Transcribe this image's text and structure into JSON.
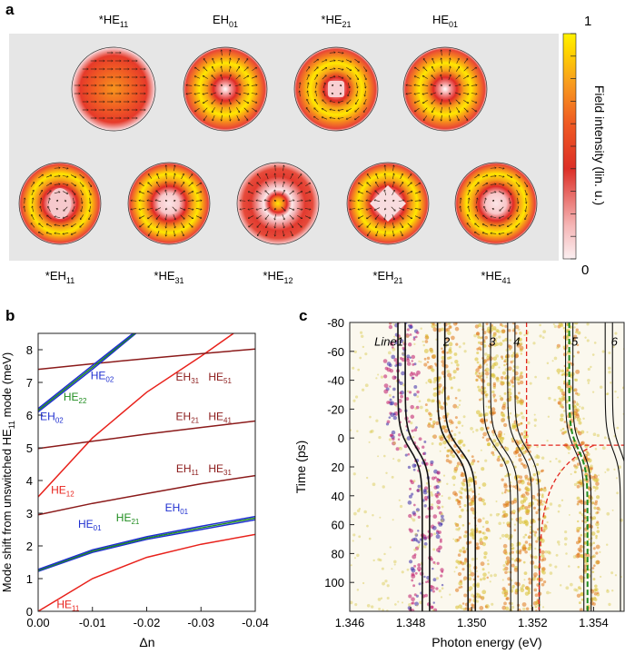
{
  "figure": {
    "panel_a": {
      "letter": "a",
      "colorbar": {
        "label": "Field intensity (lin. u.)",
        "max_label": "1",
        "min_label": "0",
        "colors": [
          "#fbeff1",
          "#f5b5b5",
          "#dc2f27",
          "#ef5a23",
          "#f89c1f",
          "#ffd400",
          "#fff200"
        ]
      },
      "modes_top": [
        {
          "prefix": "*",
          "base": "HE",
          "sub": "11",
          "pattern": "fundamental"
        },
        {
          "prefix": "",
          "base": "EH",
          "sub": "01",
          "pattern": "donut-center"
        },
        {
          "prefix": "*",
          "base": "HE",
          "sub": "21",
          "pattern": "donut-square"
        },
        {
          "prefix": "",
          "base": "HE",
          "sub": "01",
          "pattern": "donut-center"
        }
      ],
      "modes_bottom": [
        {
          "prefix": "*",
          "base": "EH",
          "sub": "11",
          "pattern": "ring-oval"
        },
        {
          "prefix": "*",
          "base": "HE",
          "sub": "31",
          "pattern": "ring"
        },
        {
          "prefix": "*",
          "base": "HE",
          "sub": "12",
          "pattern": "double-ring"
        },
        {
          "prefix": "*",
          "base": "EH",
          "sub": "21",
          "pattern": "ring-diamond"
        },
        {
          "prefix": "*",
          "base": "HE",
          "sub": "41",
          "pattern": "ring"
        }
      ]
    },
    "panel_b": {
      "letter": "b",
      "ylabel_parts": [
        "Mode shift from unswitched HE",
        "11",
        " mode (meV)"
      ],
      "xlabel": "Δn",
      "colors": {
        "red": "#e8211b",
        "darkred": "#8b1a1a",
        "blue": "#1f2fd0",
        "green": "#1e8c1e"
      },
      "annotations": [
        {
          "base": "EH",
          "sub": "31",
          "color": "darkred",
          "x": -0.0275,
          "y": 7.05
        },
        {
          "base": "HE",
          "sub": "51",
          "color": "darkred",
          "x": -0.0335,
          "y": 7.05
        },
        {
          "base": "EH",
          "sub": "21",
          "color": "darkred",
          "x": -0.0275,
          "y": 5.85
        },
        {
          "base": "HE",
          "sub": "41",
          "color": "darkred",
          "x": -0.0335,
          "y": 5.85
        },
        {
          "base": "EH",
          "sub": "11",
          "color": "darkred",
          "x": -0.0275,
          "y": 4.25
        },
        {
          "base": "HE",
          "sub": "31",
          "color": "darkred",
          "x": -0.0335,
          "y": 4.25
        },
        {
          "base": "HE",
          "sub": "12",
          "color": "red",
          "x": -0.0045,
          "y": 3.6
        },
        {
          "base": "HE",
          "sub": "02",
          "color": "blue",
          "x": -0.0118,
          "y": 7.1
        },
        {
          "base": "HE",
          "sub": "22",
          "color": "green",
          "x": -0.0068,
          "y": 6.45
        },
        {
          "base": "EH",
          "sub": "02",
          "color": "blue",
          "x": -0.0025,
          "y": 5.85
        },
        {
          "base": "HE",
          "sub": "01",
          "color": "blue",
          "x": -0.0095,
          "y": 2.55
        },
        {
          "base": "HE",
          "sub": "21",
          "color": "green",
          "x": -0.0165,
          "y": 2.75
        },
        {
          "base": "EH",
          "sub": "01",
          "color": "blue",
          "x": -0.0255,
          "y": 3.05
        },
        {
          "base": "HE",
          "sub": "11",
          "color": "red",
          "x": -0.0055,
          "y": 0.1
        }
      ]
    },
    "panel_c": {
      "letter": "c",
      "ylabel": "Time (ps)",
      "xlabel": "Photon energy (eV)",
      "line_labels": [
        "Line1",
        "2",
        "3",
        "4",
        "5",
        "6"
      ]
    }
  },
  "chart_data": [
    {
      "type": "line",
      "panel": "b",
      "xlabel": "Δn",
      "ylabel": "Mode shift from unswitched HE11 mode (meV)",
      "xlim": [
        0,
        -0.04
      ],
      "ylim": [
        0,
        8.5
      ],
      "xticks": [
        "0.00",
        "-0.01",
        "-0.02",
        "-0.03",
        "-0.04"
      ],
      "xtick_values": [
        0,
        -0.01,
        -0.02,
        -0.03,
        -0.04
      ],
      "yticks": [
        "0",
        "1",
        "2",
        "3",
        "4",
        "5",
        "6",
        "7",
        "8"
      ],
      "ytick_values": [
        0,
        1,
        2,
        3,
        4,
        5,
        6,
        7,
        8
      ],
      "series": [
        {
          "name": "HE11",
          "color": "red",
          "x": [
            0,
            -0.01,
            -0.02,
            -0.03,
            -0.04
          ],
          "y": [
            0.0,
            1.0,
            1.65,
            2.05,
            2.35
          ]
        },
        {
          "name": "HE12",
          "color": "red",
          "x": [
            0,
            -0.01,
            -0.02,
            -0.03,
            -0.036
          ],
          "y": [
            3.5,
            5.3,
            6.7,
            7.8,
            8.5
          ]
        },
        {
          "name": "EH11 / HE31",
          "color": "darkred",
          "x": [
            0,
            -0.01,
            -0.02,
            -0.03,
            -0.04
          ],
          "y": [
            2.95,
            3.3,
            3.6,
            3.9,
            4.15
          ]
        },
        {
          "name": "EH21 / HE41",
          "color": "darkred",
          "x": [
            0,
            -0.01,
            -0.02,
            -0.03,
            -0.04
          ],
          "y": [
            4.98,
            5.2,
            5.42,
            5.62,
            5.82
          ]
        },
        {
          "name": "EH31 / HE51",
          "color": "darkred",
          "x": [
            0,
            -0.01,
            -0.02,
            -0.03,
            -0.04
          ],
          "y": [
            7.4,
            7.57,
            7.73,
            7.88,
            8.02
          ]
        },
        {
          "name": "HE01",
          "color": "blue",
          "x": [
            0,
            -0.01,
            -0.02,
            -0.03,
            -0.04
          ],
          "y": [
            1.22,
            1.8,
            2.2,
            2.5,
            2.8
          ]
        },
        {
          "name": "HE21",
          "color": "green",
          "x": [
            0,
            -0.01,
            -0.02,
            -0.03,
            -0.04
          ],
          "y": [
            1.25,
            1.84,
            2.24,
            2.55,
            2.85
          ]
        },
        {
          "name": "EH01",
          "color": "blue",
          "x": [
            0,
            -0.01,
            -0.02,
            -0.03,
            -0.04
          ],
          "y": [
            1.28,
            1.88,
            2.28,
            2.6,
            2.9
          ]
        },
        {
          "name": "EH02",
          "color": "blue",
          "x": [
            0,
            -0.01,
            -0.018
          ],
          "y": [
            6.1,
            7.4,
            8.5
          ]
        },
        {
          "name": "HE22",
          "color": "green",
          "x": [
            0,
            -0.01,
            -0.0178
          ],
          "y": [
            6.15,
            7.46,
            8.5
          ]
        },
        {
          "name": "HE02",
          "color": "blue",
          "x": [
            0,
            -0.01,
            -0.0175
          ],
          "y": [
            6.2,
            7.52,
            8.5
          ]
        }
      ]
    },
    {
      "type": "heatmap",
      "panel": "c",
      "xlabel": "Photon energy (eV)",
      "ylabel": "Time (ps)",
      "xlim": [
        1.346,
        1.355
      ],
      "ylim": [
        120,
        -80
      ],
      "xticks": [
        "1.346",
        "1.348",
        "1.350",
        "1.352",
        "1.354"
      ],
      "xtick_values": [
        1.346,
        1.348,
        1.35,
        1.352,
        1.354
      ],
      "yticks": [
        "-80",
        "-60",
        "-40",
        "-20",
        "0",
        "20",
        "40",
        "60",
        "80",
        "100"
      ],
      "ytick_values": [
        -80,
        -60,
        -40,
        -20,
        0,
        20,
        40,
        60,
        80,
        100
      ],
      "lines": [
        {
          "label": "Line1",
          "before_eV": 1.3477,
          "after_eV": 1.3485
        },
        {
          "label": "2",
          "before_eV": 1.349,
          "after_eV": 1.35
        },
        {
          "label": "3",
          "before_eV": 1.3505,
          "after_eV": 1.3514
        },
        {
          "label": "4",
          "before_eV": 1.3513,
          "after_eV": 1.3521
        },
        {
          "label": "5",
          "before_eV": 1.3532,
          "after_eV": 1.3538
        },
        {
          "label": "6",
          "before_eV": 1.3545,
          "after_eV": 1.355
        }
      ]
    }
  ]
}
